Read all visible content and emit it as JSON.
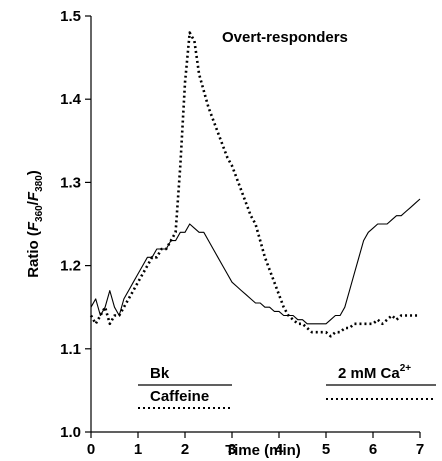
{
  "chart_data": {
    "type": "line",
    "title": "Overt-responders",
    "x_label": "Time (min)",
    "y_label": [
      "Ratio (",
      "F",
      "360",
      "/",
      "F",
      "380",
      ")"
    ],
    "xlim": [
      0,
      7
    ],
    "xticks": [
      0,
      1,
      2,
      3,
      4,
      5,
      6,
      7
    ],
    "ylim": [
      1.0,
      1.5
    ],
    "yticks": [
      {
        "value": 1.0,
        "label": "1.0"
      },
      1.1,
      1.2,
      1.3,
      1.4,
      1.5
    ],
    "x": [
      0,
      0.1,
      0.2,
      0.3,
      0.4,
      0.5,
      0.6,
      0.7,
      0.8,
      0.9,
      1,
      1.1,
      1.2,
      1.3,
      1.4,
      1.5,
      1.6,
      1.7,
      1.8,
      1.9,
      2,
      2.1,
      2.2,
      2.3,
      2.4,
      2.5,
      2.6,
      2.7,
      2.8,
      2.9,
      3,
      3.1,
      3.2,
      3.3,
      3.4,
      3.5,
      3.6,
      3.7,
      3.8,
      3.9,
      4,
      4.1,
      4.2,
      4.3,
      4.4,
      4.5,
      4.6,
      4.7,
      4.8,
      4.9,
      5,
      5.1,
      5.2,
      5.3,
      5.4,
      5.5,
      5.6,
      5.7,
      5.8,
      5.9,
      6,
      6.1,
      6.2,
      6.3,
      6.4,
      6.5,
      6.6,
      6.7,
      6.8,
      6.9,
      7
    ],
    "series": [
      {
        "color": "#000000",
        "dash": "solid",
        "values": [
          1.15,
          1.16,
          1.14,
          1.15,
          1.17,
          1.15,
          1.14,
          1.16,
          1.17,
          1.18,
          1.19,
          1.2,
          1.21,
          1.21,
          1.22,
          1.22,
          1.22,
          1.23,
          1.23,
          1.24,
          1.24,
          1.25,
          1.245,
          1.24,
          1.24,
          1.23,
          1.22,
          1.21,
          1.2,
          1.19,
          1.18,
          1.175,
          1.17,
          1.165,
          1.16,
          1.155,
          1.155,
          1.15,
          1.15,
          1.145,
          1.145,
          1.14,
          1.14,
          1.14,
          1.135,
          1.135,
          1.13,
          1.13,
          1.13,
          1.13,
          1.13,
          1.135,
          1.14,
          1.14,
          1.15,
          1.17,
          1.19,
          1.21,
          1.23,
          1.24,
          1.245,
          1.25,
          1.25,
          1.25,
          1.255,
          1.26,
          1.26,
          1.265,
          1.27,
          1.275,
          1.28
        ]
      },
      {
        "color": "#000000",
        "dash": "dotted",
        "values": [
          1.14,
          1.13,
          1.14,
          1.15,
          1.13,
          1.14,
          1.14,
          1.15,
          1.16,
          1.17,
          1.18,
          1.19,
          1.2,
          1.21,
          1.21,
          1.22,
          1.22,
          1.23,
          1.24,
          1.32,
          1.42,
          1.48,
          1.47,
          1.43,
          1.41,
          1.39,
          1.375,
          1.36,
          1.345,
          1.33,
          1.32,
          1.305,
          1.29,
          1.275,
          1.26,
          1.25,
          1.23,
          1.21,
          1.195,
          1.18,
          1.165,
          1.15,
          1.14,
          1.135,
          1.13,
          1.13,
          1.125,
          1.12,
          1.12,
          1.12,
          1.12,
          1.115,
          1.12,
          1.12,
          1.125,
          1.125,
          1.13,
          1.13,
          1.13,
          1.13,
          1.13,
          1.135,
          1.13,
          1.135,
          1.14,
          1.135,
          1.14,
          1.14,
          1.14,
          1.14,
          1.14
        ]
      }
    ],
    "treatments": [
      {
        "label": "Bk",
        "x": [
          1,
          3
        ],
        "lines": [
          "solid"
        ]
      },
      {
        "label": "Caffeine",
        "x": [
          1,
          3
        ],
        "lines": [
          "dotted"
        ]
      },
      {
        "label": "2 mM Ca",
        "label_sup": "2+",
        "x": [
          5,
          7
        ],
        "lines": [
          "solid",
          "dotted"
        ]
      }
    ]
  }
}
